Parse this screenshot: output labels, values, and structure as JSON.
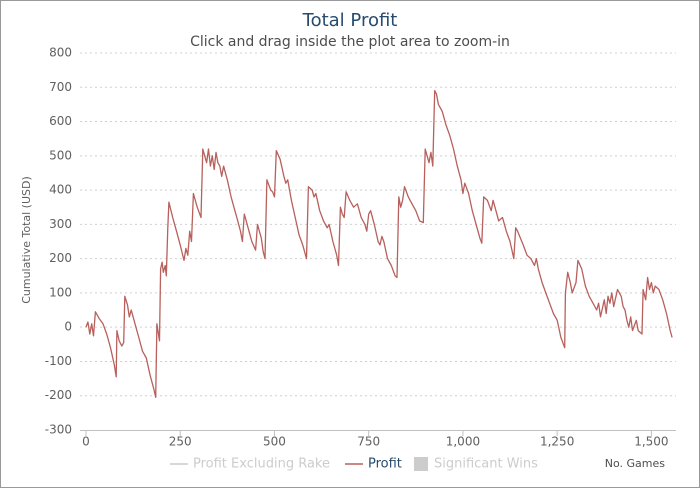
{
  "chart_data": {
    "type": "line",
    "title": "Total Profit",
    "subtitle": "Click and drag inside the plot area to zoom-in",
    "y_label": "Cumulative Total (USD)",
    "x_label": "No. Games",
    "xlim": [
      0,
      1560
    ],
    "xticks": [
      0,
      250,
      500,
      750,
      {
        "value": 1000,
        "label": "1,000"
      },
      {
        "value": 1250,
        "label": "1,250"
      },
      {
        "value": 1500,
        "label": "1,500"
      }
    ],
    "ylim": [
      -300,
      800
    ],
    "yticks": [
      -300,
      -200,
      -100,
      0,
      100,
      200,
      300,
      400,
      500,
      600,
      700,
      800
    ],
    "grid": true,
    "x": [
      0,
      5,
      10,
      15,
      20,
      25,
      35,
      45,
      55,
      65,
      75,
      80,
      82,
      88,
      95,
      100,
      103,
      110,
      115,
      120,
      130,
      140,
      150,
      160,
      170,
      180,
      185,
      188,
      195,
      198,
      202,
      205,
      210,
      213,
      217,
      220,
      230,
      240,
      250,
      260,
      265,
      270,
      275,
      280,
      285,
      295,
      305,
      310,
      315,
      320,
      325,
      330,
      335,
      340,
      345,
      350,
      355,
      360,
      365,
      375,
      385,
      395,
      400,
      410,
      415,
      420,
      430,
      440,
      450,
      455,
      465,
      470,
      475,
      480,
      490,
      495,
      500,
      505,
      515,
      525,
      530,
      535,
      545,
      555,
      565,
      575,
      585,
      590,
      600,
      605,
      610,
      620,
      630,
      640,
      645,
      655,
      665,
      670,
      675,
      680,
      685,
      690,
      700,
      710,
      720,
      730,
      740,
      745,
      750,
      755,
      765,
      775,
      780,
      785,
      790,
      800,
      810,
      820,
      825,
      830,
      835,
      840,
      845,
      855,
      865,
      875,
      885,
      895,
      900,
      905,
      910,
      915,
      920,
      925,
      930,
      935,
      945,
      955,
      965,
      975,
      985,
      995,
      1000,
      1005,
      1015,
      1025,
      1035,
      1045,
      1050,
      1055,
      1065,
      1075,
      1080,
      1085,
      1095,
      1105,
      1115,
      1125,
      1135,
      1140,
      1145,
      1160,
      1170,
      1180,
      1190,
      1195,
      1200,
      1210,
      1220,
      1230,
      1240,
      1250,
      1260,
      1270,
      1272,
      1278,
      1285,
      1290,
      1300,
      1305,
      1315,
      1325,
      1335,
      1345,
      1355,
      1360,
      1365,
      1375,
      1380,
      1385,
      1390,
      1395,
      1400,
      1410,
      1420,
      1425,
      1430,
      1435,
      1440,
      1445,
      1450,
      1460,
      1465,
      1475,
      1478,
      1485,
      1490,
      1495,
      1500,
      1505,
      1510,
      1520,
      1530,
      1540,
      1550,
      1555
    ],
    "series": [
      {
        "name": "Profit Excluding Rake",
        "color": "#cccccc",
        "symbol": "line",
        "visible": false
      },
      {
        "name": "Profit",
        "color": "#b7605c",
        "symbol": "line",
        "visible": true,
        "values": [
          0,
          15,
          -20,
          10,
          -25,
          45,
          25,
          10,
          -20,
          -60,
          -110,
          -145,
          -10,
          -40,
          -55,
          -45,
          90,
          65,
          30,
          50,
          10,
          -30,
          -70,
          -90,
          -140,
          -180,
          -205,
          10,
          -40,
          170,
          190,
          160,
          180,
          150,
          290,
          365,
          320,
          280,
          240,
          195,
          230,
          210,
          280,
          250,
          390,
          350,
          320,
          520,
          500,
          480,
          520,
          470,
          500,
          460,
          510,
          480,
          470,
          440,
          470,
          430,
          380,
          340,
          320,
          280,
          250,
          330,
          290,
          250,
          225,
          300,
          260,
          220,
          200,
          430,
          400,
          395,
          380,
          515,
          490,
          440,
          420,
          430,
          370,
          320,
          270,
          240,
          200,
          410,
          400,
          380,
          390,
          340,
          310,
          290,
          300,
          250,
          210,
          180,
          350,
          330,
          320,
          395,
          370,
          350,
          360,
          320,
          300,
          280,
          330,
          340,
          300,
          250,
          240,
          265,
          250,
          200,
          180,
          150,
          145,
          380,
          350,
          370,
          410,
          380,
          360,
          340,
          310,
          305,
          520,
          500,
          480,
          510,
          470,
          690,
          680,
          650,
          630,
          590,
          560,
          520,
          470,
          430,
          390,
          420,
          390,
          340,
          300,
          260,
          245,
          380,
          370,
          340,
          370,
          350,
          310,
          320,
          280,
          250,
          200,
          290,
          280,
          240,
          210,
          200,
          180,
          200,
          170,
          130,
          100,
          70,
          40,
          20,
          -30,
          -60,
          100,
          160,
          130,
          100,
          130,
          195,
          170,
          120,
          90,
          70,
          50,
          70,
          30,
          80,
          40,
          90,
          70,
          100,
          60,
          110,
          90,
          60,
          50,
          20,
          0,
          30,
          -10,
          20,
          -10,
          -20,
          110,
          80,
          145,
          110,
          130,
          100,
          120,
          110,
          80,
          40,
          -10,
          -30
        ]
      },
      {
        "name": "Significant Wins",
        "color": "#cccccc",
        "symbol": "area",
        "visible": false
      }
    ]
  }
}
